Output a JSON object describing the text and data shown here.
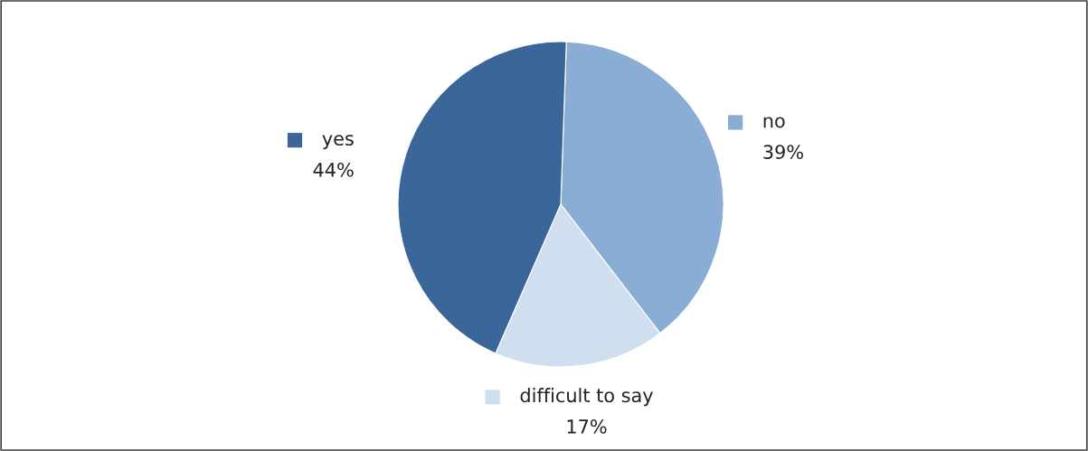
{
  "chart_data": {
    "type": "pie",
    "categories": [
      "no",
      "difficult to say",
      "yes"
    ],
    "values": [
      39,
      17,
      44
    ],
    "colors": [
      "#8aadd6",
      "#d0dff0",
      "#3b6699"
    ],
    "value_labels": [
      "39%",
      "17%",
      "44%"
    ],
    "legend": "center"
  }
}
